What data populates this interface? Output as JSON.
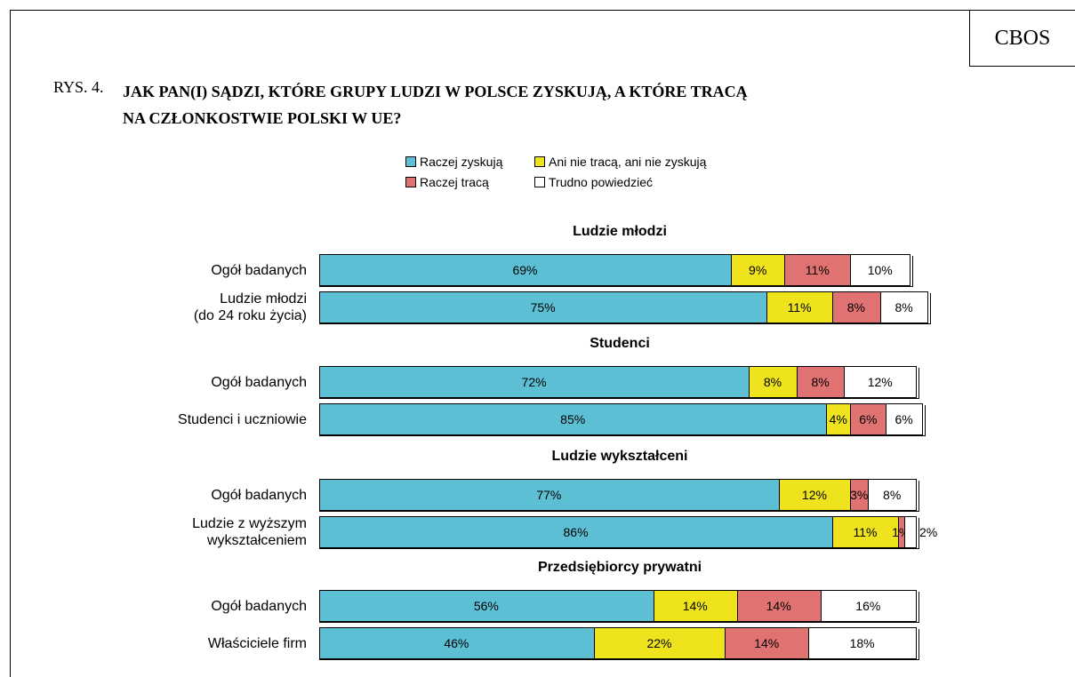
{
  "figure_label": "RYS. 4.",
  "title": "JAK PAN(I) SĄDZI, KTÓRE GRUPY LUDZI W POLSCE ZYSKUJĄ, A KTÓRE TRACĄ\nNA  CZŁONKOSTWIE POLSKI W UE?",
  "source": "CBOS",
  "chart_data": [
    {
      "type": "stacked-bar-horizontal",
      "title": "Ludzie młodzi",
      "xlim": [
        0,
        100
      ],
      "categories": [
        "Ogół badanych",
        "Ludzie młodzi\n(do 24 roku życia)"
      ],
      "series": [
        {
          "name": "Raczej zyskują",
          "color": "#5dbfd3",
          "values": [
            69,
            75
          ],
          "value_labels": [
            "69%",
            "75%"
          ]
        },
        {
          "name": "Ani nie tracą, ani nie zyskują",
          "color": "#eee31c",
          "values": [
            9,
            11
          ],
          "value_labels": [
            "9%",
            "11%"
          ]
        },
        {
          "name": "Raczej tracą",
          "color": "#e07272",
          "values": [
            11,
            8
          ],
          "value_labels": [
            "11%",
            "8%"
          ]
        },
        {
          "name": "Trudno powiedzieć",
          "color": "#ffffff",
          "values": [
            10,
            8
          ],
          "value_labels": [
            "10%",
            "8%"
          ]
        }
      ]
    },
    {
      "type": "stacked-bar-horizontal",
      "title": "Studenci",
      "xlim": [
        0,
        100
      ],
      "categories": [
        "Ogół badanych",
        "Studenci i uczniowie"
      ],
      "series": [
        {
          "name": "Raczej zyskują",
          "color": "#5dbfd3",
          "values": [
            72,
            85
          ],
          "value_labels": [
            "72%",
            "85%"
          ]
        },
        {
          "name": "Ani nie tracą, ani nie zyskują",
          "color": "#eee31c",
          "values": [
            8,
            4
          ],
          "value_labels": [
            "8%",
            "4%"
          ]
        },
        {
          "name": "Raczej tracą",
          "color": "#e07272",
          "values": [
            8,
            6
          ],
          "value_labels": [
            "8%",
            "6%"
          ]
        },
        {
          "name": "Trudno powiedzieć",
          "color": "#ffffff",
          "values": [
            12,
            6
          ],
          "value_labels": [
            "12%",
            "6%"
          ]
        }
      ]
    },
    {
      "type": "stacked-bar-horizontal",
      "title": "Ludzie wykształceni",
      "xlim": [
        0,
        100
      ],
      "categories": [
        "Ogół badanych",
        "Ludzie z wyższym\nwykształceniem"
      ],
      "series": [
        {
          "name": "Raczej zyskują",
          "color": "#5dbfd3",
          "values": [
            77,
            86
          ],
          "value_labels": [
            "77%",
            "86%"
          ]
        },
        {
          "name": "Ani nie tracą, ani nie zyskują",
          "color": "#eee31c",
          "values": [
            12,
            11
          ],
          "value_labels": [
            "12%",
            "11%"
          ]
        },
        {
          "name": "Raczej tracą",
          "color": "#e07272",
          "values": [
            3,
            1
          ],
          "value_labels": [
            "3%",
            "1%"
          ]
        },
        {
          "name": "Trudno powiedzieć",
          "color": "#ffffff",
          "values": [
            8,
            2
          ],
          "value_labels": [
            "8%",
            "2%"
          ]
        }
      ]
    },
    {
      "type": "stacked-bar-horizontal",
      "title": "Przedsiębiorcy prywatni",
      "xlim": [
        0,
        100
      ],
      "categories": [
        "Ogół badanych",
        "Właściciele firm"
      ],
      "series": [
        {
          "name": "Raczej zyskują",
          "color": "#5dbfd3",
          "values": [
            56,
            46
          ],
          "value_labels": [
            "56%",
            "46%"
          ]
        },
        {
          "name": "Ani nie tracą, ani nie zyskują",
          "color": "#eee31c",
          "values": [
            14,
            22
          ],
          "value_labels": [
            "14%",
            "22%"
          ]
        },
        {
          "name": "Raczej tracą",
          "color": "#e07272",
          "values": [
            14,
            14
          ],
          "value_labels": [
            "14%",
            "14%"
          ]
        },
        {
          "name": "Trudno powiedzieć",
          "color": "#ffffff",
          "values": [
            16,
            18
          ],
          "value_labels": [
            "16%",
            "18%"
          ]
        }
      ]
    }
  ]
}
